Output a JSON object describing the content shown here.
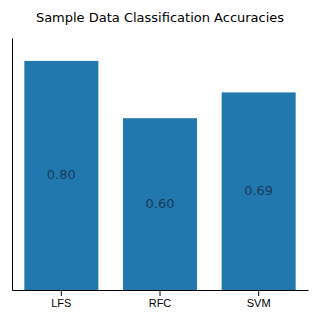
{
  "chart_data": {
    "type": "bar",
    "title": "Sample Data Classification Accuracies",
    "categories": [
      "LFS",
      "RFC",
      "SVM"
    ],
    "values": [
      0.8,
      0.6,
      0.69
    ],
    "value_labels": [
      "0.80",
      "0.60",
      "0.69"
    ],
    "data_labels": true,
    "color": "#2178ae",
    "ylim": [
      0,
      0.88
    ],
    "grid": false,
    "tick_labels": "x"
  }
}
